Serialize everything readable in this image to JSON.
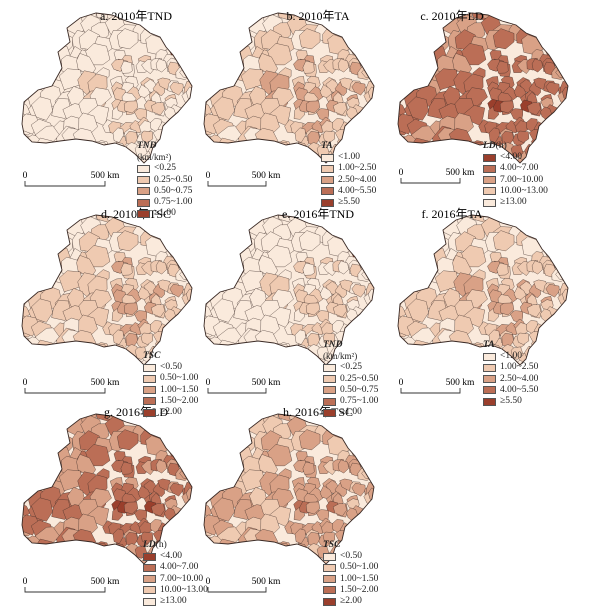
{
  "palette": {
    "c0": "#faeadc",
    "c1": "#efcab1",
    "c2": "#d9a186",
    "c3": "#bb6e56",
    "c4": "#9a3f2c",
    "border": "#3a2a25"
  },
  "panels": [
    {
      "id": "a",
      "title": "a. 2010年TND",
      "legend_title": "TND",
      "legend_unit": "(km/km²)",
      "classes": [
        "<0.25",
        "0.25~0.50",
        "0.50~0.75",
        "0.75~1.00",
        "≥1.00"
      ],
      "scale_zero": "0",
      "scale_label": "500 km"
    },
    {
      "id": "b",
      "title": "b. 2010年TA",
      "legend_title": "TA",
      "legend_unit": "",
      "classes": [
        "<1.00",
        "1.00~2.50",
        "2.50~4.00",
        "4.00~5.50",
        "≥5.50"
      ],
      "scale_zero": "0",
      "scale_label": "500 km"
    },
    {
      "id": "c",
      "title": "c. 2010年LD",
      "legend_title": "LD",
      "legend_unit": "(h)",
      "classes": [
        "<4.00",
        "4.00~7.00",
        "7.00~10.00",
        "10.00~13.00",
        "≥13.00"
      ],
      "scale_zero": "0",
      "scale_label": "500 km"
    },
    {
      "id": "d",
      "title": "d. 2010年TSC",
      "legend_title": "TSC",
      "legend_unit": "",
      "classes": [
        "<0.50",
        "0.50~1.00",
        "1.00~1.50",
        "1.50~2.00",
        "≥2.00"
      ],
      "scale_zero": "0",
      "scale_label": "500 km"
    },
    {
      "id": "e",
      "title": "e. 2016年TND",
      "legend_title": "TND",
      "legend_unit": "(km/km²)",
      "classes": [
        "<0.25",
        "0.25~0.50",
        "0.50~0.75",
        "0.75~1.00",
        "≥1.00"
      ],
      "scale_zero": "0",
      "scale_label": "500 km"
    },
    {
      "id": "f",
      "title": "f. 2016年TA",
      "legend_title": "TA",
      "legend_unit": "",
      "classes": [
        "<1.00",
        "1.00~2.50",
        "2.50~4.00",
        "4.00~5.50",
        "≥5.50"
      ],
      "scale_zero": "0",
      "scale_label": "500 km"
    },
    {
      "id": "g",
      "title": "g. 2016年LD",
      "legend_title": "LD",
      "legend_unit": "(h)",
      "classes": [
        "<4.00",
        "4.00~7.00",
        "7.00~10.00",
        "10.00~13.00",
        "≥13.00"
      ],
      "scale_zero": "0",
      "scale_label": "500 km"
    },
    {
      "id": "h",
      "title": "h. 2016年TSC",
      "legend_title": "TSC",
      "legend_unit": "",
      "classes": [
        "<0.50",
        "0.50~1.00",
        "1.00~1.50",
        "1.50~2.00",
        "≥2.00"
      ],
      "scale_zero": "0",
      "scale_label": "500 km"
    }
  ]
}
